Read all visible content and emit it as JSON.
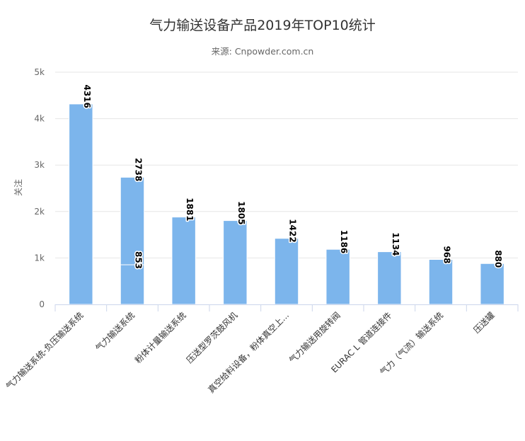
{
  "chart_data": {
    "type": "bar",
    "title": "气力输送设备产品2019年TOP10统计",
    "subtitle": "来源: Cnpowder.com.cn",
    "ylabel": "关注",
    "xlabel": "",
    "ylim": [
      0,
      5000
    ],
    "yticks": [
      0,
      1000,
      2000,
      3000,
      4000,
      5000
    ],
    "ytick_labels": [
      "0",
      "1k",
      "2k",
      "3k",
      "4k",
      "5k"
    ],
    "grid": true,
    "legend": "none",
    "bar_color": "#7cb5ec",
    "categories": [
      "气力输送系统-负压输送系统",
      "气力输送系统",
      "粉体计量输送系统",
      "压送型罗茨鼓风机",
      "真空给料设备，粉体真空上...",
      "气力输送用旋转阀",
      "EURAC L 管道连接件",
      "气力（气流）输送系统",
      "压送罐"
    ],
    "series": [
      {
        "values": [
          4316,
          2738,
          1881,
          1805,
          1422,
          1186,
          1134,
          968,
          880
        ],
        "labels": [
          "4316",
          "2738",
          "1881",
          "1805",
          "1422",
          "1186",
          "1134",
          "968",
          "880"
        ]
      }
    ],
    "extra_bars": [
      {
        "category_index": 1,
        "value": 853,
        "label": "853"
      }
    ]
  }
}
